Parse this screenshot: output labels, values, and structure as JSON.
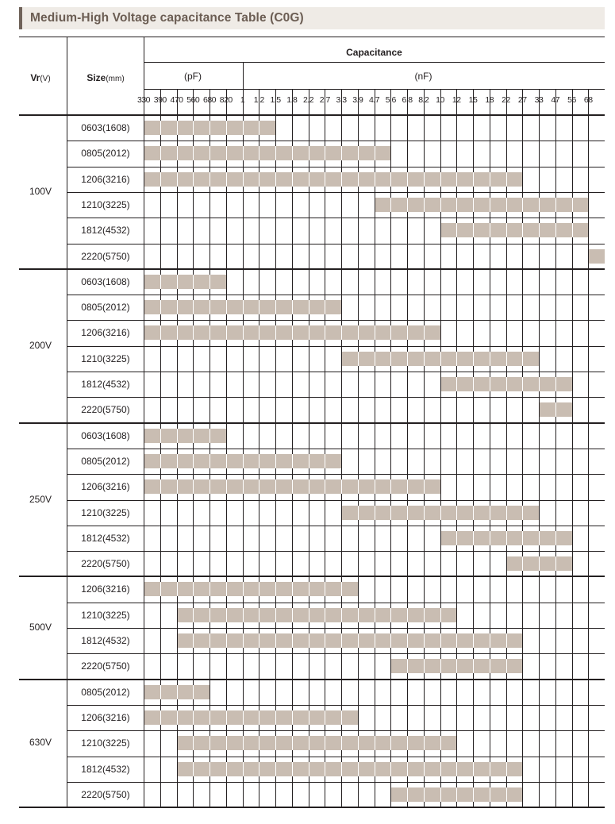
{
  "title": "Medium-High Voltage capacitance Table (C0G)",
  "colors": {
    "bar": "#c9bdb2",
    "title_bg": "#efebe6",
    "title_text": "#6b5d53"
  },
  "header": {
    "vr_label": "Vr",
    "vr_unit": "(V)",
    "size_label": "Size",
    "size_unit": "(mm)",
    "capacitance_label": "Capacitance",
    "pf_label": "(pF)",
    "nf_label": "(nF)"
  },
  "chart_data": {
    "type": "table",
    "title": "Medium-High Voltage capacitance Table (C0G)",
    "capacitance_columns": [
      "330",
      "390",
      "470",
      "560",
      "680",
      "820",
      "1",
      "1.2",
      "1.5",
      "1.8",
      "2.2",
      "2.7",
      "3.3",
      "3.9",
      "4.7",
      "5.6",
      "6.8",
      "8.2",
      "10",
      "12",
      "15",
      "18",
      "22",
      "27",
      "33",
      "47",
      "56",
      "68"
    ],
    "column_units": [
      "pF",
      "pF",
      "pF",
      "pF",
      "pF",
      "pF",
      "nF",
      "nF",
      "nF",
      "nF",
      "nF",
      "nF",
      "nF",
      "nF",
      "nF",
      "nF",
      "nF",
      "nF",
      "nF",
      "nF",
      "nF",
      "nF",
      "nF",
      "nF",
      "nF",
      "nF",
      "nF",
      "nF"
    ],
    "groups": [
      {
        "voltage": "100V",
        "rows": [
          {
            "size": "0603(1608)",
            "min": "330",
            "max": "1.2"
          },
          {
            "size": "0805(2012)",
            "min": "330",
            "max": "4.7"
          },
          {
            "size": "1206(3216)",
            "min": "330",
            "max": "22"
          },
          {
            "size": "1210(3225)",
            "min": "4.7",
            "max": "56"
          },
          {
            "size": "1812(4532)",
            "min": "10",
            "max": "56"
          },
          {
            "size": "2220(5750)",
            "min": "68",
            "max": "68"
          }
        ]
      },
      {
        "voltage": "200V",
        "rows": [
          {
            "size": "0603(1608)",
            "min": "330",
            "max": "680"
          },
          {
            "size": "0805(2012)",
            "min": "330",
            "max": "2.7"
          },
          {
            "size": "1206(3216)",
            "min": "330",
            "max": "8.2"
          },
          {
            "size": "1210(3225)",
            "min": "3.3",
            "max": "27"
          },
          {
            "size": "1812(4532)",
            "min": "10",
            "max": "47"
          },
          {
            "size": "2220(5750)",
            "min": "33",
            "max": "47"
          }
        ]
      },
      {
        "voltage": "250V",
        "rows": [
          {
            "size": "0603(1608)",
            "min": "330",
            "max": "680"
          },
          {
            "size": "0805(2012)",
            "min": "330",
            "max": "2.7"
          },
          {
            "size": "1206(3216)",
            "min": "330",
            "max": "8.2"
          },
          {
            "size": "1210(3225)",
            "min": "3.3",
            "max": "27"
          },
          {
            "size": "1812(4532)",
            "min": "10",
            "max": "47"
          },
          {
            "size": "2220(5750)",
            "min": "22",
            "max": "47"
          }
        ]
      },
      {
        "voltage": "500V",
        "rows": [
          {
            "size": "1206(3216)",
            "min": "330",
            "max": "3.3"
          },
          {
            "size": "1210(3225)",
            "min": "470",
            "max": "10"
          },
          {
            "size": "1812(4532)",
            "min": "470",
            "max": "22"
          },
          {
            "size": "2220(5750)",
            "min": "5.6",
            "max": "22"
          }
        ]
      },
      {
        "voltage": "630V",
        "rows": [
          {
            "size": "0805(2012)",
            "min": "330",
            "max": "560"
          },
          {
            "size": "1206(3216)",
            "min": "330",
            "max": "3.3"
          },
          {
            "size": "1210(3225)",
            "min": "470",
            "max": "10"
          },
          {
            "size": "1812(4532)",
            "min": "470",
            "max": "22"
          },
          {
            "size": "2220(5750)",
            "min": "5.6",
            "max": "22"
          }
        ]
      }
    ]
  }
}
